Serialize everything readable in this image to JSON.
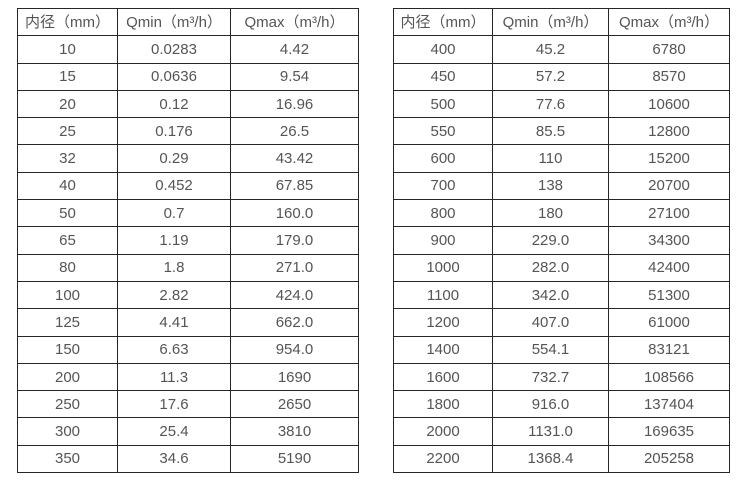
{
  "page": {
    "background_color": "#ffffff",
    "border_color": "#262626",
    "text_color": "#555555"
  },
  "left_table": {
    "headers": [
      "内径（mm）",
      "Qmin（m³/h）",
      "Qmax（m³/h）"
    ],
    "rows": [
      [
        "10",
        "0.0283",
        "4.42"
      ],
      [
        "15",
        "0.0636",
        "9.54"
      ],
      [
        "20",
        "0.12",
        "16.96"
      ],
      [
        "25",
        "0.176",
        "26.5"
      ],
      [
        "32",
        "0.29",
        "43.42"
      ],
      [
        "40",
        "0.452",
        "67.85"
      ],
      [
        "50",
        "0.7",
        "160.0"
      ],
      [
        "65",
        "1.19",
        "179.0"
      ],
      [
        "80",
        "1.8",
        "271.0"
      ],
      [
        "100",
        "2.82",
        "424.0"
      ],
      [
        "125",
        "4.41",
        "662.0"
      ],
      [
        "150",
        "6.63",
        "954.0"
      ],
      [
        "200",
        "11.3",
        "1690"
      ],
      [
        "250",
        "17.6",
        "2650"
      ],
      [
        "300",
        "25.4",
        "3810"
      ],
      [
        "350",
        "34.6",
        "5190"
      ]
    ]
  },
  "right_table": {
    "headers": [
      "内径（mm）",
      "Qmin（m³/h）",
      "Qmax（m³/h）"
    ],
    "rows": [
      [
        "400",
        "45.2",
        "6780"
      ],
      [
        "450",
        "57.2",
        "8570"
      ],
      [
        "500",
        "77.6",
        "10600"
      ],
      [
        "550",
        "85.5",
        "12800"
      ],
      [
        "600",
        "110",
        "15200"
      ],
      [
        "700",
        "138",
        "20700"
      ],
      [
        "800",
        "180",
        "27100"
      ],
      [
        "900",
        "229.0",
        "34300"
      ],
      [
        "1000",
        "282.0",
        "42400"
      ],
      [
        "1100",
        "342.0",
        "51300"
      ],
      [
        "1200",
        "407.0",
        "61000"
      ],
      [
        "1400",
        "554.1",
        "83121"
      ],
      [
        "1600",
        "732.7",
        "108566"
      ],
      [
        "1800",
        "916.0",
        "137404"
      ],
      [
        "2000",
        "1131.0",
        "169635"
      ],
      [
        "2200",
        "1368.4",
        "205258"
      ]
    ]
  }
}
